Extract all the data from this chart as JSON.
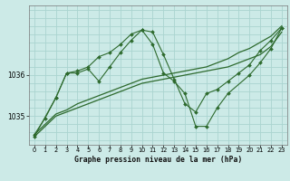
{
  "background_color": "#cceae7",
  "grid_color": "#aad4d0",
  "line_color": "#2d6a2d",
  "marker_color": "#2d6a2d",
  "title": "Graphe pression niveau de la mer (hPa)",
  "xlim": [
    -0.5,
    23.5
  ],
  "ylim": [
    1034.3,
    1037.7
  ],
  "yticks": [
    1035,
    1036
  ],
  "xticks": [
    0,
    1,
    2,
    3,
    4,
    5,
    6,
    7,
    8,
    9,
    10,
    11,
    12,
    13,
    14,
    15,
    16,
    17,
    18,
    19,
    20,
    21,
    22,
    23
  ],
  "series": [
    {
      "name": "slow_line1",
      "x": [
        0,
        1,
        2,
        3,
        4,
        5,
        6,
        7,
        8,
        9,
        10,
        11,
        12,
        13,
        14,
        15,
        16,
        17,
        18,
        19,
        20,
        21,
        22,
        23
      ],
      "y": [
        1034.5,
        1034.75,
        1035.0,
        1035.1,
        1035.2,
        1035.3,
        1035.4,
        1035.5,
        1035.6,
        1035.7,
        1035.8,
        1035.85,
        1035.9,
        1035.95,
        1036.0,
        1036.05,
        1036.1,
        1036.15,
        1036.2,
        1036.3,
        1036.4,
        1036.5,
        1036.7,
        1037.05
      ],
      "marker": false,
      "lw": 0.9
    },
    {
      "name": "slow_line2",
      "x": [
        0,
        1,
        2,
        3,
        4,
        5,
        6,
        7,
        8,
        9,
        10,
        11,
        12,
        13,
        14,
        15,
        16,
        17,
        18,
        19,
        20,
        21,
        22,
        23
      ],
      "y": [
        1034.55,
        1034.8,
        1035.05,
        1035.15,
        1035.3,
        1035.4,
        1035.5,
        1035.6,
        1035.7,
        1035.8,
        1035.9,
        1035.95,
        1036.0,
        1036.05,
        1036.1,
        1036.15,
        1036.2,
        1036.3,
        1036.4,
        1036.55,
        1036.65,
        1036.8,
        1036.95,
        1037.2
      ],
      "marker": false,
      "lw": 0.9
    },
    {
      "name": "volatile_line1",
      "x": [
        0,
        1,
        2,
        3,
        4,
        5,
        6,
        7,
        8,
        9,
        10,
        11,
        12,
        13,
        14,
        15,
        16,
        17,
        18,
        19,
        20,
        21,
        22,
        23
      ],
      "y": [
        1034.55,
        1034.95,
        1035.45,
        1036.05,
        1036.05,
        1036.15,
        1035.85,
        1036.2,
        1036.55,
        1036.85,
        1037.1,
        1037.05,
        1036.5,
        1035.9,
        1035.3,
        1035.1,
        1035.55,
        1035.65,
        1035.85,
        1036.05,
        1036.25,
        1036.6,
        1036.85,
        1037.15
      ],
      "marker": true,
      "lw": 0.8
    },
    {
      "name": "volatile_line2",
      "x": [
        0,
        2,
        3,
        4,
        5,
        6,
        7,
        8,
        9,
        10,
        11,
        12,
        13,
        14,
        15,
        16,
        17,
        18,
        20,
        21,
        22,
        23
      ],
      "y": [
        1034.5,
        1035.45,
        1036.05,
        1036.1,
        1036.2,
        1036.45,
        1036.55,
        1036.75,
        1037.0,
        1037.1,
        1036.75,
        1036.05,
        1035.85,
        1035.55,
        1034.75,
        1034.75,
        1035.2,
        1035.55,
        1036.0,
        1036.3,
        1036.65,
        1037.15
      ],
      "marker": true,
      "lw": 0.8
    }
  ]
}
